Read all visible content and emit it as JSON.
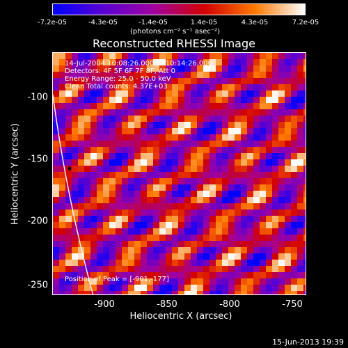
{
  "colorbar": {
    "tick_labels": [
      "-7.2e-05",
      "-4.3e-05",
      "-1.4e-05",
      "1.4e-05",
      "4.3e-05",
      "7.2e-05"
    ],
    "units_label": "(photons cm⁻² s⁻¹ asec⁻²)",
    "colormap": [
      "#0000ff",
      "#5a00d2",
      "#a000a0",
      "#d20000",
      "#ff7800",
      "#ffffff"
    ]
  },
  "title": "Reconstructed RHESSI Image",
  "info_lines": [
    "14-Jul-2004 10:08:26.000 to 10:14:26.000",
    "Detectors: 4F 5F 6F 7F 8F, Att 0",
    "Energy Range: 25.0 - 50.0 keV",
    "Clean    Total counts: 4.37E+03"
  ],
  "peak_label": "Position of Peak = [-901,-177]",
  "axes": {
    "y_ticks": [
      "-100",
      "-150",
      "-200",
      "-250"
    ],
    "x_ticks": [
      "-900",
      "-850",
      "-800",
      "-750"
    ],
    "xlabel": "Heliocentric X (arcsec)",
    "ylabel": "Heliocentric Y (arcsec)"
  },
  "timestamp": "15-Jun-2013 19:39"
}
